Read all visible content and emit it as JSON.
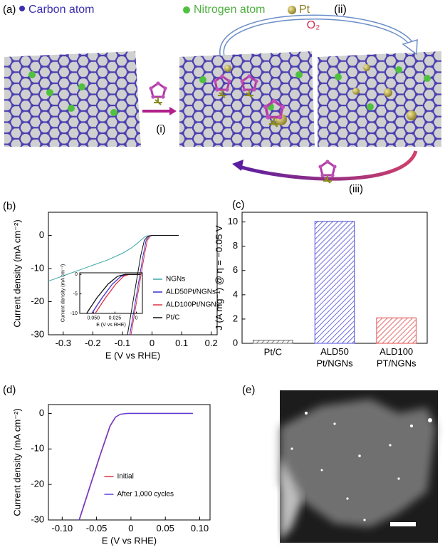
{
  "schematic": {
    "label": "(a)",
    "legend": [
      "Carbon atom",
      "Nitrogen atom",
      "Pt"
    ],
    "steps": [
      "(i)",
      "(ii)",
      "(iii)"
    ],
    "gas": "O₂"
  },
  "chart_data": [
    {
      "type": "line",
      "label": "(b)",
      "xlabel": "E (V vs RHE)",
      "ylabel": "Current density (mA cm⁻²)",
      "xlim": [
        -0.35,
        0.22
      ],
      "ylim": [
        -30,
        7
      ],
      "xticks": [
        -0.3,
        -0.2,
        -0.1,
        0,
        0.1,
        0.2
      ],
      "yticks": [
        0,
        -10,
        -20,
        -30
      ],
      "legend": "center right",
      "series": [
        {
          "name": "NGNs",
          "color": "#3aa6a6",
          "x": [
            -0.35,
            -0.3,
            -0.25,
            -0.2,
            -0.15,
            -0.1,
            -0.07,
            -0.05,
            -0.03,
            -0.02,
            0,
            0.05,
            0.09
          ],
          "values": [
            -13.8,
            -12.2,
            -10.6,
            -9,
            -7.4,
            -5.4,
            -3.8,
            -2.4,
            -0.8,
            -0.2,
            0,
            0,
            0
          ]
        },
        {
          "name": "ALD50Pt/NGNs",
          "color": "#3b2fd0",
          "x": [
            -0.075,
            -0.06,
            -0.045,
            -0.03,
            -0.02,
            -0.01,
            0,
            0.05,
            0.09
          ],
          "values": [
            -30,
            -22,
            -14,
            -6,
            -1.5,
            -0.2,
            0,
            0,
            0
          ]
        },
        {
          "name": "ALD100Pt/NGNs",
          "color": "#e03040",
          "x": [
            -0.071,
            -0.056,
            -0.041,
            -0.026,
            -0.016,
            -0.006,
            0,
            0.05,
            0.09
          ],
          "values": [
            -30,
            -22,
            -14,
            -6,
            -1.5,
            -0.2,
            0,
            0,
            0
          ]
        },
        {
          "name": "Pt/C",
          "color": "#111111",
          "x": [
            -0.083,
            -0.068,
            -0.053,
            -0.038,
            -0.026,
            -0.014,
            0,
            0.05,
            0.09
          ],
          "values": [
            -30,
            -22,
            -14,
            -6,
            -1.5,
            -0.2,
            0,
            0,
            0
          ]
        }
      ],
      "inset": {
        "type": "line",
        "xlabel": "E (V vs RHE)",
        "ylabel": "Current density (mA cm⁻²)",
        "xlim": [
          0.066,
          -0.007
        ],
        "ylim": [
          -10,
          0.4
        ],
        "xticks": [
          {
            "value": 0.05,
            "label": "0.050"
          },
          {
            "value": 0.025,
            "label": "0.025"
          },
          0
        ],
        "yticks": [
          0,
          -5,
          -10
        ],
        "series": [
          {
            "color": "#3b2fd0",
            "x": [
              0.052,
              0.04,
              0.028,
              0.018,
              0.01,
              -0.005
            ],
            "values": [
              -10,
              -6,
              -2.5,
              -0.5,
              0,
              0
            ]
          },
          {
            "color": "#e03040",
            "x": [
              0.048,
              0.036,
              0.024,
              0.015,
              0.008,
              -0.005
            ],
            "values": [
              -10,
              -6,
              -2.5,
              -0.5,
              0,
              0
            ]
          },
          {
            "color": "#111111",
            "x": [
              0.058,
              0.046,
              0.033,
              0.022,
              0.013,
              -0.005
            ],
            "values": [
              -10,
              -6,
              -2.5,
              -0.5,
              0,
              0
            ]
          }
        ]
      }
    },
    {
      "type": "bar",
      "label": "(c)",
      "ylabel": "J (A mg⁻¹) @ η = −0.05 V",
      "categories": [
        "Pt/C",
        "ALD50 Pt/NGNs",
        "ALD100 PT/NGNs"
      ],
      "values": [
        0.25,
        10.05,
        2.1
      ],
      "colors": [
        "#666666",
        "#4a4ad8",
        "#e04848"
      ],
      "ylim": [
        0,
        10.8
      ],
      "yticks": [
        0,
        2,
        4,
        6,
        8,
        10
      ]
    },
    {
      "type": "line",
      "label": "(d)",
      "xlabel": "E (V vs RHE)",
      "ylabel": "Current density (mA cm⁻²)",
      "xlim": [
        -0.12,
        0.115
      ],
      "ylim": [
        -30,
        2.5
      ],
      "xticks": [
        {
          "value": -0.1,
          "label": "-0.10"
        },
        -0.05,
        0,
        0.05,
        {
          "value": 0.1,
          "label": "0.10"
        }
      ],
      "yticks": [
        0,
        -10,
        -20,
        -30
      ],
      "legend": "center",
      "series": [
        {
          "name": "Initial",
          "color": "#e03040",
          "x": [
            -0.075,
            -0.06,
            -0.045,
            -0.03,
            -0.022,
            -0.015,
            -0.005,
            0.05,
            0.09
          ],
          "values": [
            -30,
            -21,
            -12,
            -3.5,
            -1,
            -0.2,
            0,
            0,
            0
          ]
        },
        {
          "name": "After 1,000 cycles",
          "color": "#5a3fe0",
          "x": [
            -0.0755,
            -0.0605,
            -0.0455,
            -0.0305,
            -0.0225,
            -0.0155,
            -0.0055,
            0.05,
            0.09
          ],
          "values": [
            -30,
            -21,
            -12,
            -3.5,
            -1,
            -0.2,
            0,
            0,
            0
          ]
        }
      ]
    }
  ],
  "micrograph": {
    "label": "(e)"
  }
}
